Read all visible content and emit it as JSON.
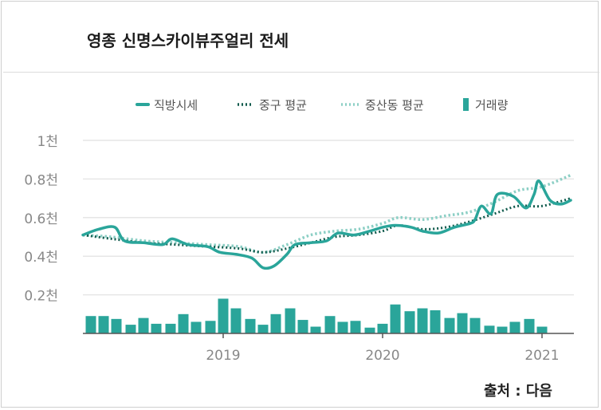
{
  "title": "영종 신명스카이뷰주얼리 전세",
  "source": "출처 : 다음",
  "colors": {
    "main_line": "#2aa59a",
    "junggu_line": "#0f5a4c",
    "sangdong_line": "#8ccfc5",
    "bars": "#2aa59a",
    "grid": "#e6e6e6",
    "axis": "#555555"
  },
  "legend": [
    {
      "label": "직방시세",
      "style": "solid-line"
    },
    {
      "label": "중구 평균",
      "style": "dotted-dark"
    },
    {
      "label": "중산동 평균",
      "style": "dotted-light"
    },
    {
      "label": "거래량",
      "style": "bar"
    }
  ],
  "chart_data": {
    "type": "line",
    "title": "영종 신명스카이뷰주얼리 전세",
    "y_ticks": [
      "1천",
      "0.8천",
      "0.6천",
      "0.4천",
      "0.2천"
    ],
    "y_tick_values": [
      1.0,
      0.8,
      0.6,
      0.4,
      0.2
    ],
    "ylim": [
      0,
      1.0
    ],
    "x_ticks": [
      "2019",
      "2020",
      "2021"
    ],
    "x_tick_positions": [
      2019.0,
      2020.0,
      2021.0
    ],
    "xlim": [
      2018.12,
      2021.2
    ],
    "series": [
      {
        "name": "직방시세",
        "style": "solid",
        "points": [
          [
            2018.12,
            0.51
          ],
          [
            2018.22,
            0.54
          ],
          [
            2018.32,
            0.55
          ],
          [
            2018.38,
            0.48
          ],
          [
            2018.5,
            0.47
          ],
          [
            2018.62,
            0.46
          ],
          [
            2018.68,
            0.49
          ],
          [
            2018.78,
            0.46
          ],
          [
            2018.9,
            0.45
          ],
          [
            2018.98,
            0.42
          ],
          [
            2019.08,
            0.41
          ],
          [
            2019.18,
            0.39
          ],
          [
            2019.25,
            0.34
          ],
          [
            2019.32,
            0.35
          ],
          [
            2019.4,
            0.41
          ],
          [
            2019.45,
            0.46
          ],
          [
            2019.55,
            0.47
          ],
          [
            2019.65,
            0.48
          ],
          [
            2019.72,
            0.52
          ],
          [
            2019.82,
            0.51
          ],
          [
            2019.92,
            0.53
          ],
          [
            2020.0,
            0.55
          ],
          [
            2020.08,
            0.56
          ],
          [
            2020.18,
            0.55
          ],
          [
            2020.25,
            0.53
          ],
          [
            2020.35,
            0.52
          ],
          [
            2020.45,
            0.55
          ],
          [
            2020.55,
            0.57
          ],
          [
            2020.58,
            0.59
          ],
          [
            2020.62,
            0.66
          ],
          [
            2020.68,
            0.62
          ],
          [
            2020.72,
            0.72
          ],
          [
            2020.82,
            0.71
          ],
          [
            2020.9,
            0.65
          ],
          [
            2020.95,
            0.72
          ],
          [
            2020.98,
            0.79
          ],
          [
            2021.05,
            0.69
          ],
          [
            2021.12,
            0.67
          ],
          [
            2021.18,
            0.69
          ]
        ]
      },
      {
        "name": "중구 평균",
        "style": "dotted-dark",
        "points": [
          [
            2018.12,
            0.51
          ],
          [
            2018.3,
            0.49
          ],
          [
            2018.5,
            0.47
          ],
          [
            2018.7,
            0.46
          ],
          [
            2018.9,
            0.45
          ],
          [
            2019.1,
            0.44
          ],
          [
            2019.25,
            0.42
          ],
          [
            2019.4,
            0.44
          ],
          [
            2019.55,
            0.47
          ],
          [
            2019.7,
            0.5
          ],
          [
            2019.85,
            0.51
          ],
          [
            2020.0,
            0.53
          ],
          [
            2020.1,
            0.56
          ],
          [
            2020.25,
            0.54
          ],
          [
            2020.4,
            0.55
          ],
          [
            2020.55,
            0.58
          ],
          [
            2020.7,
            0.62
          ],
          [
            2020.85,
            0.66
          ],
          [
            2021.0,
            0.66
          ],
          [
            2021.18,
            0.7
          ]
        ]
      },
      {
        "name": "중산동 평균",
        "style": "dotted-light",
        "points": [
          [
            2018.12,
            0.51
          ],
          [
            2018.3,
            0.5
          ],
          [
            2018.5,
            0.48
          ],
          [
            2018.7,
            0.47
          ],
          [
            2018.9,
            0.46
          ],
          [
            2019.1,
            0.45
          ],
          [
            2019.25,
            0.42
          ],
          [
            2019.4,
            0.46
          ],
          [
            2019.55,
            0.51
          ],
          [
            2019.7,
            0.53
          ],
          [
            2019.85,
            0.54
          ],
          [
            2020.0,
            0.57
          ],
          [
            2020.1,
            0.6
          ],
          [
            2020.25,
            0.59
          ],
          [
            2020.4,
            0.61
          ],
          [
            2020.55,
            0.63
          ],
          [
            2020.7,
            0.68
          ],
          [
            2020.85,
            0.74
          ],
          [
            2021.0,
            0.76
          ],
          [
            2021.18,
            0.82
          ]
        ]
      }
    ],
    "bars": {
      "name": "거래량",
      "x": [
        2018.17,
        2018.25,
        2018.33,
        2018.42,
        2018.5,
        2018.58,
        2018.67,
        2018.75,
        2018.83,
        2018.92,
        2019.0,
        2019.08,
        2019.17,
        2019.25,
        2019.33,
        2019.42,
        2019.5,
        2019.58,
        2019.67,
        2019.75,
        2019.83,
        2019.92,
        2020.0,
        2020.08,
        2020.17,
        2020.25,
        2020.33,
        2020.42,
        2020.5,
        2020.58,
        2020.67,
        2020.75,
        2020.83,
        2020.92,
        2021.0
      ],
      "values": [
        0.09,
        0.09,
        0.075,
        0.045,
        0.08,
        0.05,
        0.05,
        0.1,
        0.06,
        0.065,
        0.18,
        0.13,
        0.075,
        0.045,
        0.1,
        0.13,
        0.07,
        0.035,
        0.09,
        0.06,
        0.065,
        0.03,
        0.05,
        0.15,
        0.115,
        0.13,
        0.12,
        0.08,
        0.105,
        0.08,
        0.04,
        0.035,
        0.06,
        0.075,
        0.035
      ]
    }
  }
}
